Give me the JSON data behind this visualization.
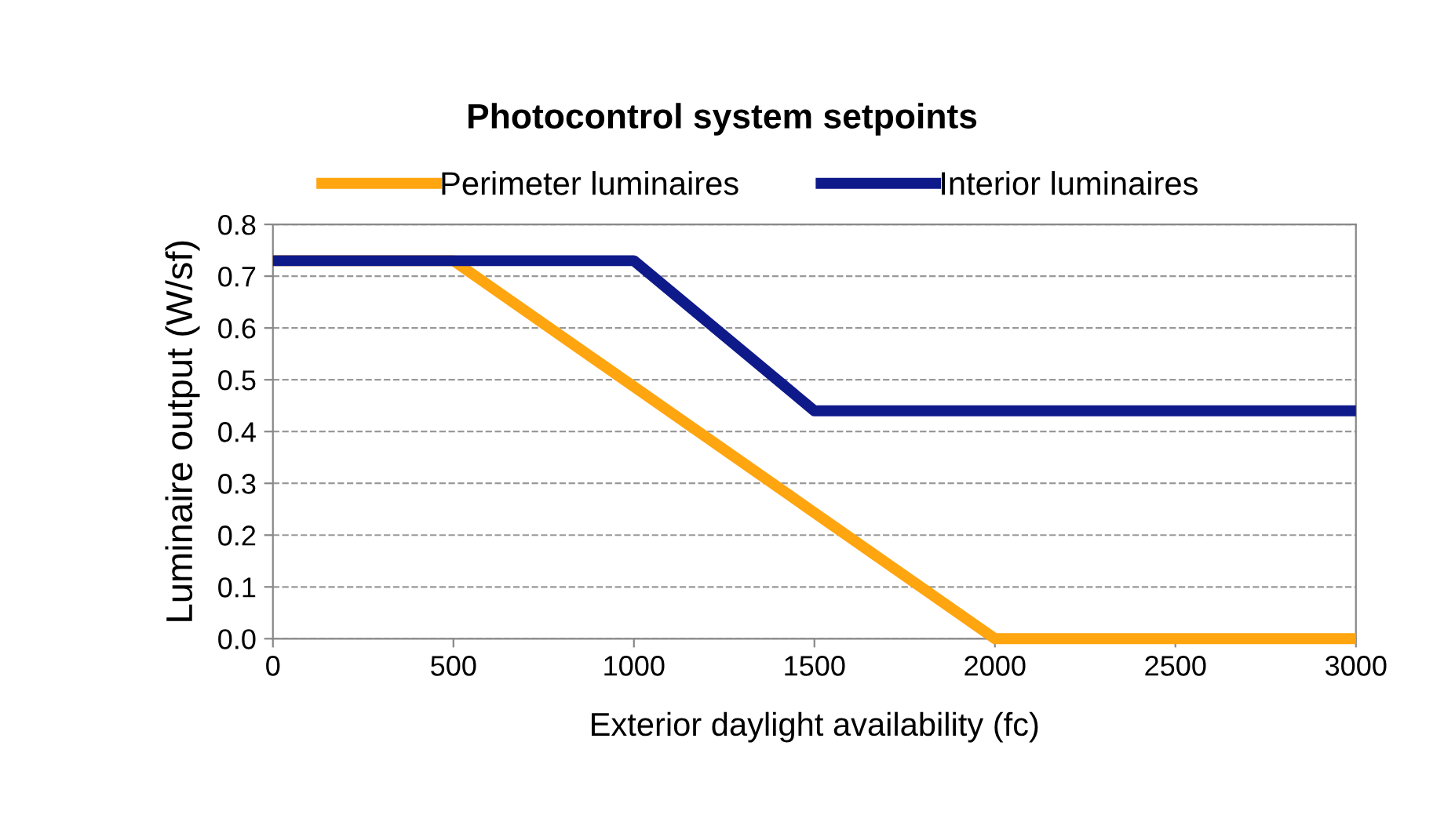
{
  "chart_data": {
    "type": "line",
    "title": "Photocontrol system setpoints",
    "xlabel": "Exterior daylight availability (fc)",
    "ylabel": "Luminaire output (W/sf)",
    "series": [
      {
        "name": "Perimeter luminaires",
        "color": "#ffa50f",
        "x": [
          0,
          500,
          2000,
          3000
        ],
        "values": [
          0.73,
          0.73,
          0.0,
          0.0
        ]
      },
      {
        "name": "Interior luminaires",
        "color": "#0f1a8a",
        "x": [
          0,
          1000,
          1500,
          3000
        ],
        "values": [
          0.73,
          0.73,
          0.44,
          0.44
        ]
      }
    ],
    "xlim": [
      0,
      3000
    ],
    "xticks": [
      0,
      500,
      1000,
      1500,
      2000,
      2500,
      3000
    ],
    "ylim": [
      0,
      0.8
    ],
    "yticks": [
      {
        "value": 0,
        "label": "0.0"
      },
      {
        "value": 0.1,
        "label": "0.1"
      },
      {
        "value": 0.2,
        "label": "0.2"
      },
      {
        "value": 0.3,
        "label": "0.3"
      },
      {
        "value": 0.4,
        "label": "0.4"
      },
      {
        "value": 0.5,
        "label": "0.5"
      },
      {
        "value": 0.6,
        "label": "0.6"
      },
      {
        "value": 0.7,
        "label": "0.7"
      },
      {
        "value": 0.8,
        "label": "0.8"
      }
    ],
    "grid": "y",
    "legend": "top",
    "marker": "none",
    "line_style": "solid"
  }
}
